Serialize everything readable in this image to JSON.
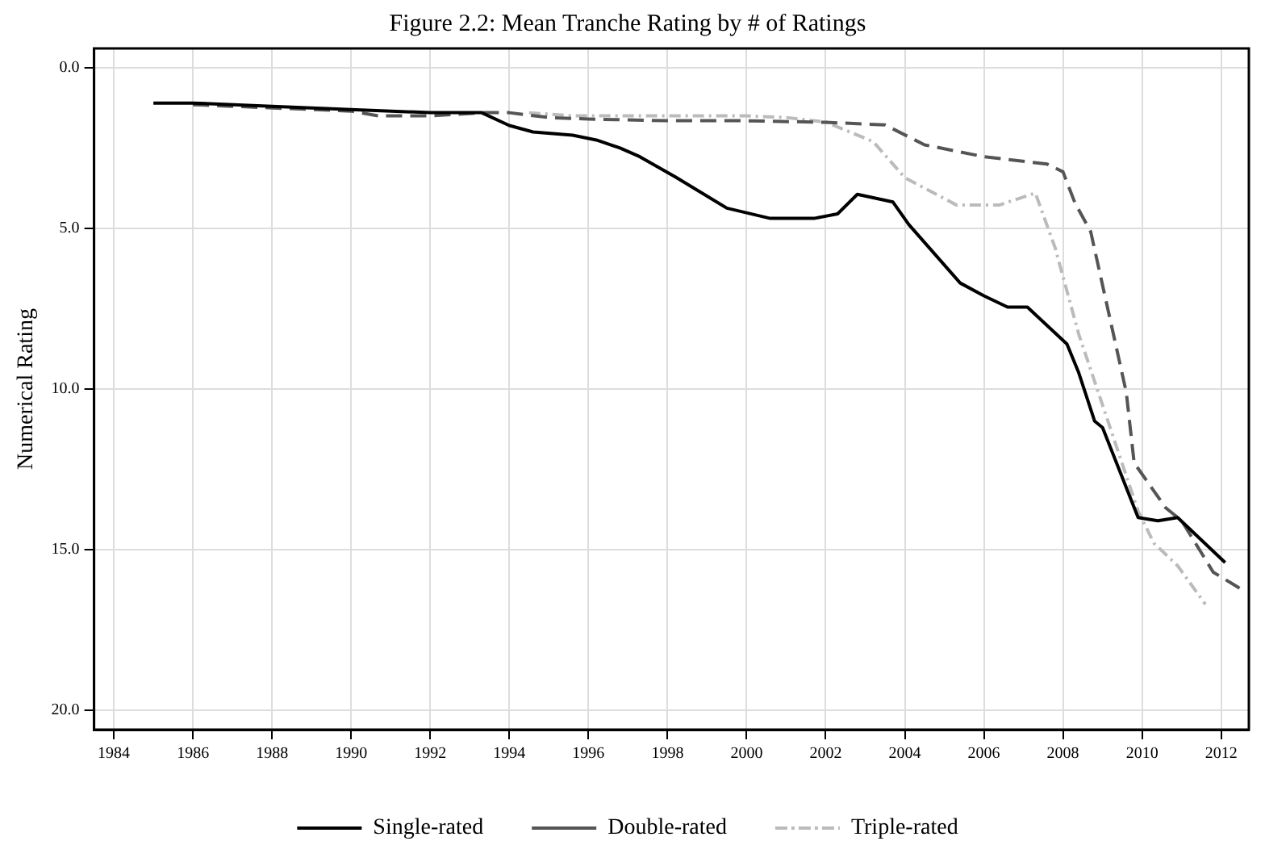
{
  "chart_data": {
    "type": "line",
    "title": "Figure 2.2: Mean Tranche Rating by # of Ratings",
    "ylabel": "Numerical Rating",
    "xlim": [
      1983.5,
      2012.7
    ],
    "xticks": [
      1984,
      1986,
      1988,
      1990,
      1992,
      1994,
      1996,
      1998,
      2000,
      2002,
      2004,
      2006,
      2008,
      2010,
      2012
    ],
    "ylim": [
      20.6,
      -0.6
    ],
    "yticks": [
      {
        "value": 0,
        "label": "0.0"
      },
      {
        "value": 5,
        "label": "5.0"
      },
      {
        "value": 10,
        "label": "10.0"
      },
      {
        "value": 15,
        "label": "15.0"
      },
      {
        "value": 20,
        "label": "20.0"
      }
    ],
    "grid": true,
    "legend": "bottom",
    "marker": "none",
    "series": [
      {
        "name": "Single-rated",
        "color": "#000000",
        "line_style": "solid",
        "x": [
          1985,
          1986,
          1988,
          1990,
          1992,
          1993.3,
          1994,
          1994.6,
          1995.6,
          1996.2,
          1996.8,
          1997.3,
          1998.2,
          1999.5,
          2000.6,
          2001.7,
          2002.3,
          2002.8,
          2003.7,
          2004.1,
          2005.4,
          2006,
          2006.6,
          2007.1,
          2008.1,
          2008.4,
          2008.8,
          2009,
          2009.9,
          2010.4,
          2010.9,
          2012.1
        ],
        "values": [
          1.1,
          1.1,
          1.2,
          1.3,
          1.4,
          1.4,
          1.8,
          2,
          2.1,
          2.25,
          2.5,
          2.77,
          3.4,
          4.37,
          4.69,
          4.69,
          4.55,
          3.94,
          4.18,
          4.88,
          6.7,
          7.1,
          7.45,
          7.45,
          8.6,
          9.5,
          11,
          11.2,
          14,
          14.1,
          14,
          15.4
        ]
      },
      {
        "name": "Double-rated",
        "color": "#555555",
        "line_style": "dashed",
        "x": [
          1986,
          1988,
          1990,
          1990.7,
          1992,
          1993.3,
          1994,
          1995,
          1996,
          1998,
          2000,
          2002,
          2003.5,
          2004.5,
          2006,
          2007.6,
          2008,
          2008.3,
          2008.7,
          2009.6,
          2009.8,
          2010.6,
          2011,
          2011.8,
          2012.6
        ],
        "values": [
          1.15,
          1.25,
          1.35,
          1.5,
          1.5,
          1.4,
          1.4,
          1.55,
          1.6,
          1.65,
          1.65,
          1.7,
          1.78,
          2.4,
          2.77,
          3,
          3.24,
          4.2,
          5.1,
          10.1,
          12.3,
          13.7,
          14.1,
          15.7,
          16.3
        ]
      },
      {
        "name": "Triple-rated",
        "color": "#bbbbbb",
        "line_style": "dotted",
        "x": [
          1994.5,
          1995.6,
          1998,
          2000,
          2001,
          2002,
          2003.2,
          2004,
          2005.3,
          2006.4,
          2007.3,
          2007.8,
          2008.4,
          2009,
          2009.9,
          2010.3,
          2010.9,
          2011.6
        ],
        "values": [
          1.4,
          1.5,
          1.5,
          1.5,
          1.55,
          1.69,
          2.3,
          3.42,
          4.27,
          4.27,
          3.9,
          5.6,
          8.3,
          10.5,
          13.8,
          14.8,
          15.5,
          16.7
        ]
      }
    ]
  }
}
